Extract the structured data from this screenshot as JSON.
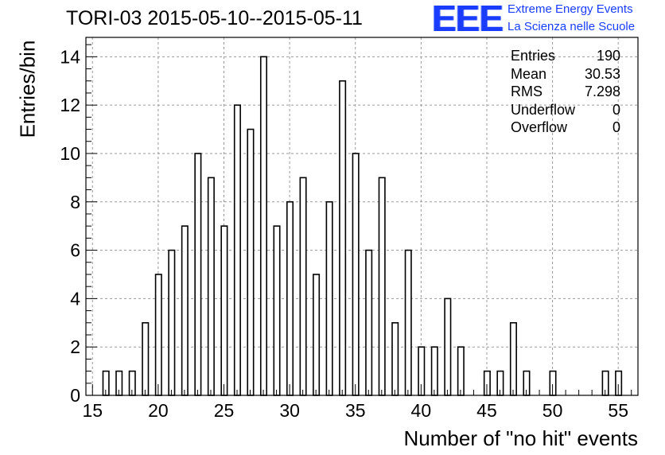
{
  "chart_data": {
    "type": "bar",
    "title": "TORI-03 2015-05-10--2015-05-11",
    "xlabel": "Number of \"no hit\" events",
    "ylabel": "Entries/bin",
    "xlim": [
      14.5,
      56.5
    ],
    "ylim": [
      0,
      14.8
    ],
    "x_ticks": [
      15,
      20,
      25,
      30,
      35,
      40,
      45,
      50,
      55
    ],
    "y_ticks": [
      0,
      2,
      4,
      6,
      8,
      10,
      12,
      14
    ],
    "grid": true,
    "bins": [
      {
        "x": 16,
        "value": 1
      },
      {
        "x": 17,
        "value": 1
      },
      {
        "x": 18,
        "value": 1
      },
      {
        "x": 19,
        "value": 3
      },
      {
        "x": 20,
        "value": 5
      },
      {
        "x": 21,
        "value": 6
      },
      {
        "x": 22,
        "value": 7
      },
      {
        "x": 23,
        "value": 10
      },
      {
        "x": 24,
        "value": 9
      },
      {
        "x": 25,
        "value": 7
      },
      {
        "x": 26,
        "value": 12
      },
      {
        "x": 27,
        "value": 11
      },
      {
        "x": 28,
        "value": 14
      },
      {
        "x": 29,
        "value": 7
      },
      {
        "x": 30,
        "value": 8
      },
      {
        "x": 31,
        "value": 9
      },
      {
        "x": 32,
        "value": 5
      },
      {
        "x": 33,
        "value": 8
      },
      {
        "x": 34,
        "value": 13
      },
      {
        "x": 35,
        "value": 10
      },
      {
        "x": 36,
        "value": 6
      },
      {
        "x": 37,
        "value": 9
      },
      {
        "x": 38,
        "value": 3
      },
      {
        "x": 39,
        "value": 6
      },
      {
        "x": 40,
        "value": 2
      },
      {
        "x": 41,
        "value": 2
      },
      {
        "x": 42,
        "value": 4
      },
      {
        "x": 43,
        "value": 2
      },
      {
        "x": 45,
        "value": 1
      },
      {
        "x": 46,
        "value": 1
      },
      {
        "x": 47,
        "value": 3
      },
      {
        "x": 48,
        "value": 1
      },
      {
        "x": 50,
        "value": 1
      },
      {
        "x": 54,
        "value": 1
      },
      {
        "x": 55,
        "value": 1
      }
    ],
    "stats": [
      {
        "label": "Entries",
        "value": "190"
      },
      {
        "label": "Mean",
        "value": "30.53"
      },
      {
        "label": "RMS",
        "value": "7.298"
      },
      {
        "label": "Underflow",
        "value": "0"
      },
      {
        "label": "Overflow",
        "value": "0"
      }
    ]
  },
  "logo": {
    "mark": "EEE",
    "line1": "Extreme Energy Events",
    "line2": "La Scienza nelle Scuole"
  },
  "colors": {
    "logo": "#1a3cff",
    "grid": "#9a9a9a",
    "bars": "#000000"
  }
}
